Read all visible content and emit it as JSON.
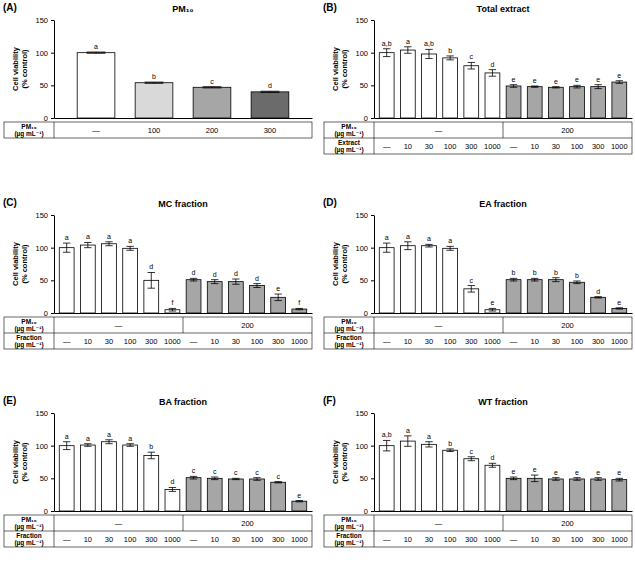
{
  "chart_data": [
    {
      "type": "bar",
      "panel": "(A)",
      "title": "PM₁₀",
      "y_label": [
        "Cell viability",
        "(% control)"
      ],
      "x_label": [
        "PM₁₀",
        "(µg mL⁻¹)"
      ],
      "categories": [
        "—",
        "100",
        "200",
        "300"
      ],
      "table_rows": [],
      "values": [
        100,
        54,
        47,
        40
      ],
      "errors": [
        1,
        1,
        1,
        1
      ],
      "letters": [
        "a",
        "b",
        "c",
        "d"
      ],
      "colors": [
        "#ffffff",
        "#d9d9d9",
        "#a6a6a6",
        "#6b6b6b"
      ],
      "ylim": [
        0,
        150
      ],
      "yticks": [
        0,
        50,
        100,
        150
      ]
    },
    {
      "type": "bar",
      "panel": "(B)",
      "title": "Total extract",
      "y_label": [
        "Cell viability",
        "(% control)"
      ],
      "x_label": [
        "Extract",
        "(µg mL⁻¹)"
      ],
      "categories": [
        "—",
        "10",
        "30",
        "100",
        "300",
        "1000",
        "—",
        "10",
        "30",
        "100",
        "300",
        "1000"
      ],
      "table_rows": [
        {
          "label": [
            "PM₁₀",
            "(µg mL⁻¹)"
          ],
          "cells": [
            {
              "text": "—",
              "span": 6
            },
            {
              "text": "200",
              "span": 6
            }
          ]
        }
      ],
      "values": [
        100,
        104,
        98,
        92,
        80,
        69,
        49,
        48,
        47,
        48,
        48,
        55
      ],
      "errors": [
        6,
        5,
        7,
        3,
        5,
        5,
        2,
        1,
        1,
        2,
        3,
        2
      ],
      "letters": [
        "a,b",
        "a",
        "a,b",
        "b",
        "c",
        "d",
        "e",
        "e",
        "e",
        "e",
        "e",
        "e"
      ],
      "colors": [
        "#ffffff",
        "#ffffff",
        "#ffffff",
        "#ffffff",
        "#ffffff",
        "#ffffff",
        "#a6a6a6",
        "#a6a6a6",
        "#a6a6a6",
        "#a6a6a6",
        "#a6a6a6",
        "#a6a6a6"
      ],
      "ylim": [
        0,
        150
      ],
      "yticks": [
        0,
        50,
        100,
        150
      ]
    },
    {
      "type": "bar",
      "panel": "(C)",
      "title": "MC fraction",
      "y_label": [
        "Cell viability",
        "(% control)"
      ],
      "x_label": [
        "Fraction",
        "(µg mL⁻¹)"
      ],
      "categories": [
        "—",
        "10",
        "30",
        "100",
        "300",
        "1000",
        "—",
        "10",
        "30",
        "100",
        "300",
        "1000"
      ],
      "table_rows": [
        {
          "label": [
            "PM₁₀",
            "(µg mL⁻¹)"
          ],
          "cells": [
            {
              "text": "—",
              "span": 6
            },
            {
              "text": "200",
              "span": 6
            }
          ]
        }
      ],
      "values": [
        100,
        104,
        106,
        99,
        50,
        5,
        51,
        48,
        48,
        42,
        24,
        6
      ],
      "errors": [
        7,
        4,
        3,
        3,
        12,
        2,
        2,
        3,
        4,
        3,
        5,
        1
      ],
      "letters": [
        "a",
        "a",
        "a",
        "a",
        "d",
        "f",
        "d",
        "d",
        "d",
        "d",
        "e",
        "f"
      ],
      "colors": [
        "#ffffff",
        "#ffffff",
        "#ffffff",
        "#ffffff",
        "#ffffff",
        "#ffffff",
        "#a6a6a6",
        "#a6a6a6",
        "#a6a6a6",
        "#a6a6a6",
        "#a6a6a6",
        "#a6a6a6"
      ],
      "ylim": [
        0,
        150
      ],
      "yticks": [
        0,
        50,
        100,
        150
      ]
    },
    {
      "type": "bar",
      "panel": "(D)",
      "title": "EA fraction",
      "y_label": [
        "Cell viability",
        "(% control)"
      ],
      "x_label": [
        "Fraction",
        "(µg mL⁻¹)"
      ],
      "categories": [
        "—",
        "10",
        "30",
        "100",
        "300",
        "1000",
        "—",
        "10",
        "30",
        "100",
        "300",
        "1000"
      ],
      "table_rows": [
        {
          "label": [
            "PM₁₀",
            "(µg mL⁻¹)"
          ],
          "cells": [
            {
              "text": "—",
              "span": 6
            },
            {
              "text": "200",
              "span": 6
            }
          ]
        }
      ],
      "values": [
        100,
        103,
        103,
        99,
        37,
        5,
        51,
        51,
        51,
        47,
        24,
        7
      ],
      "errors": [
        7,
        6,
        2,
        3,
        5,
        2,
        2,
        2,
        3,
        2,
        1,
        1
      ],
      "letters": [
        "a",
        "a",
        "a",
        "a",
        "c",
        "e",
        "b",
        "b",
        "b",
        "b",
        "d",
        "e"
      ],
      "colors": [
        "#ffffff",
        "#ffffff",
        "#ffffff",
        "#ffffff",
        "#ffffff",
        "#ffffff",
        "#a6a6a6",
        "#a6a6a6",
        "#a6a6a6",
        "#a6a6a6",
        "#a6a6a6",
        "#a6a6a6"
      ],
      "ylim": [
        0,
        150
      ],
      "yticks": [
        0,
        50,
        100,
        150
      ]
    },
    {
      "type": "bar",
      "panel": "(E)",
      "title": "BA fraction",
      "y_label": [
        "Cell viability",
        "(% control)"
      ],
      "x_label": [
        "Fraction",
        "(µg mL⁻¹)"
      ],
      "categories": [
        "—",
        "10",
        "30",
        "100",
        "300",
        "1000",
        "—",
        "10",
        "30",
        "100",
        "300",
        "1000"
      ],
      "table_rows": [
        {
          "label": [
            "PM₁₀",
            "(µg mL⁻¹)"
          ],
          "cells": [
            {
              "text": "—",
              "span": 6
            },
            {
              "text": "200",
              "span": 6
            }
          ]
        }
      ],
      "values": [
        100,
        101,
        106,
        101,
        85,
        33,
        51,
        50,
        49,
        49,
        44,
        15
      ],
      "errors": [
        6,
        2,
        3,
        2,
        5,
        3,
        2,
        2,
        1,
        2,
        1,
        1
      ],
      "letters": [
        "a",
        "a",
        "a",
        "a",
        "b",
        "d",
        "c",
        "c",
        "c",
        "c",
        "c",
        "e"
      ],
      "colors": [
        "#ffffff",
        "#ffffff",
        "#ffffff",
        "#ffffff",
        "#ffffff",
        "#ffffff",
        "#a6a6a6",
        "#a6a6a6",
        "#a6a6a6",
        "#a6a6a6",
        "#a6a6a6",
        "#a6a6a6"
      ],
      "ylim": [
        0,
        150
      ],
      "yticks": [
        0,
        50,
        100,
        150
      ]
    },
    {
      "type": "bar",
      "panel": "(F)",
      "title": "WT fraction",
      "y_label": [
        "Cell viability",
        "(% control)"
      ],
      "x_label": [
        "Fraction",
        "(µg mL⁻¹)"
      ],
      "categories": [
        "—",
        "10",
        "30",
        "100",
        "300",
        "1000",
        "—",
        "10",
        "30",
        "100",
        "300",
        "1000"
      ],
      "table_rows": [
        {
          "label": [
            "PM₁₀",
            "(µg mL⁻¹)"
          ],
          "cells": [
            {
              "text": "—",
              "span": 6
            },
            {
              "text": "200",
              "span": 6
            }
          ]
        }
      ],
      "values": [
        100,
        107,
        102,
        93,
        80,
        70,
        50,
        50,
        49,
        49,
        49,
        48
      ],
      "errors": [
        8,
        8,
        4,
        2,
        3,
        3,
        2,
        5,
        2,
        2,
        2,
        2
      ],
      "letters": [
        "a,b",
        "a",
        "a",
        "b",
        "c",
        "d",
        "e",
        "e",
        "e",
        "e",
        "e",
        "e"
      ],
      "colors": [
        "#ffffff",
        "#ffffff",
        "#ffffff",
        "#ffffff",
        "#ffffff",
        "#ffffff",
        "#a6a6a6",
        "#a6a6a6",
        "#a6a6a6",
        "#a6a6a6",
        "#a6a6a6",
        "#a6a6a6"
      ],
      "ylim": [
        0,
        150
      ],
      "yticks": [
        0,
        50,
        100,
        150
      ]
    }
  ]
}
